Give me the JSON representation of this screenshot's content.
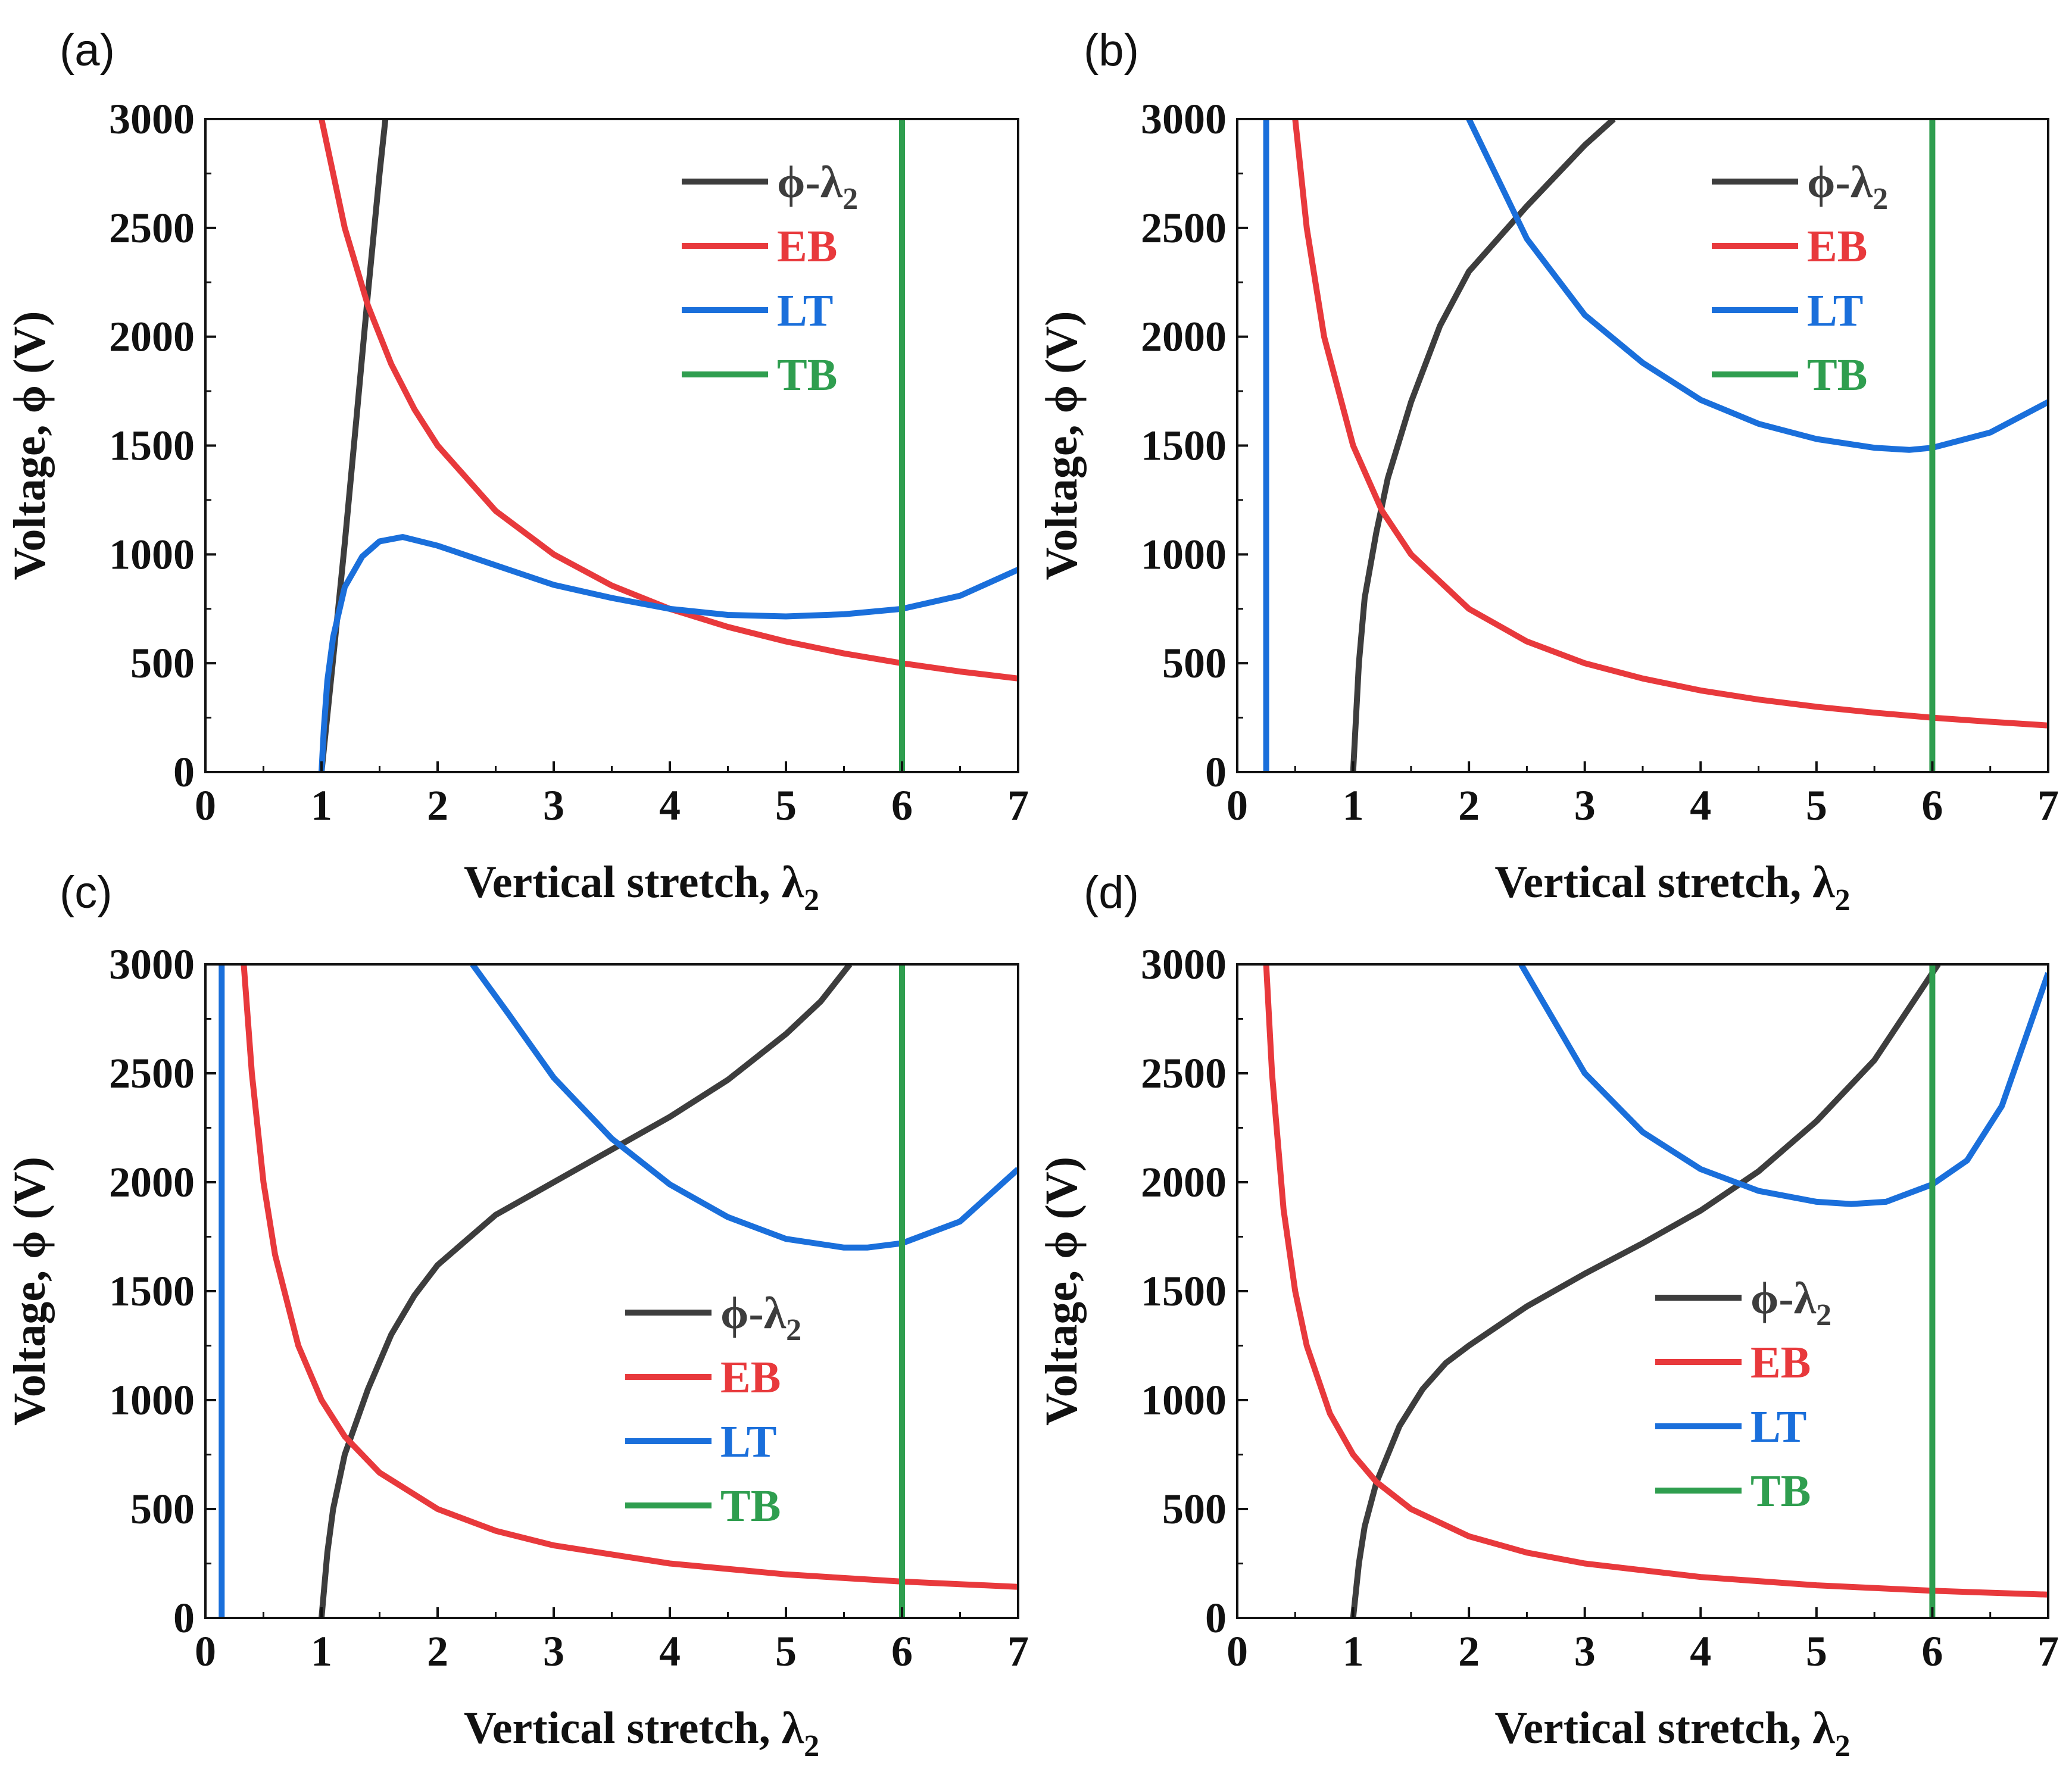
{
  "figure": {
    "panels": [
      {
        "label": "(a)"
      },
      {
        "label": "(b)"
      },
      {
        "label": "(c)"
      },
      {
        "label": "(d)"
      }
    ]
  },
  "chart_data": [
    {
      "type": "line",
      "panel": "(a)",
      "xlabel": "Vertical stretch, λ",
      "xlabel_subscript": "2",
      "ylabel": "Voltage, ϕ (V)",
      "xlim": [
        0,
        7
      ],
      "ylim": [
        0,
        3000
      ],
      "xticks": [
        0,
        1,
        2,
        3,
        4,
        5,
        6,
        7
      ],
      "yticks": [
        0,
        500,
        1000,
        1500,
        2000,
        2500,
        3000
      ],
      "legend_position": "top-right",
      "series": [
        {
          "name": "ϕ-λ",
          "sub": "2",
          "color": "#3d3d3d",
          "text_color": "#3d3d3d",
          "points": [
            [
              1.0,
              0
            ],
            [
              1.1,
              520
            ],
            [
              1.2,
              1050
            ],
            [
              1.3,
              1620
            ],
            [
              1.4,
              2200
            ],
            [
              1.5,
              2750
            ],
            [
              1.55,
              3000
            ]
          ]
        },
        {
          "name": "EB",
          "color": "#e8393c",
          "text_color": "#e8393c",
          "points": [
            [
              1.0,
              3000
            ],
            [
              1.2,
              2500
            ],
            [
              1.4,
              2143
            ],
            [
              1.6,
              1875
            ],
            [
              1.8,
              1667
            ],
            [
              2.0,
              1500
            ],
            [
              2.5,
              1200
            ],
            [
              3.0,
              1000
            ],
            [
              3.5,
              857
            ],
            [
              4.0,
              750
            ],
            [
              4.5,
              667
            ],
            [
              5.0,
              600
            ],
            [
              5.5,
              545
            ],
            [
              6.0,
              500
            ],
            [
              6.5,
              462
            ],
            [
              7.0,
              430
            ]
          ]
        },
        {
          "name": "LT",
          "color": "#1a6fdb",
          "text_color": "#1a6fdb",
          "points": [
            [
              1.0,
              0
            ],
            [
              1.02,
              200
            ],
            [
              1.05,
              420
            ],
            [
              1.1,
              620
            ],
            [
              1.2,
              850
            ],
            [
              1.35,
              990
            ],
            [
              1.5,
              1060
            ],
            [
              1.7,
              1080
            ],
            [
              2.0,
              1040
            ],
            [
              2.5,
              950
            ],
            [
              3.0,
              860
            ],
            [
              3.5,
              800
            ],
            [
              4.0,
              750
            ],
            [
              4.5,
              722
            ],
            [
              5.0,
              715
            ],
            [
              5.5,
              725
            ],
            [
              6.0,
              750
            ],
            [
              6.5,
              810
            ],
            [
              7.0,
              930
            ]
          ]
        },
        {
          "name": "TB",
          "color": "#2f9e4f",
          "text_color": "#2f9e4f",
          "points": [
            [
              6.0,
              0
            ],
            [
              6.0,
              3000
            ]
          ]
        }
      ]
    },
    {
      "type": "line",
      "panel": "(b)",
      "xlabel": "Vertical stretch, λ",
      "xlabel_subscript": "2",
      "ylabel": "Voltage, ϕ (V)",
      "xlim": [
        0,
        7
      ],
      "ylim": [
        0,
        3000
      ],
      "xticks": [
        0,
        1,
        2,
        3,
        4,
        5,
        6,
        7
      ],
      "yticks": [
        0,
        500,
        1000,
        1500,
        2000,
        2500,
        3000
      ],
      "legend_position": "top-right",
      "series": [
        {
          "name": "ϕ-λ",
          "sub": "2",
          "color": "#3d3d3d",
          "text_color": "#3d3d3d",
          "points": [
            [
              1.0,
              0
            ],
            [
              1.05,
              500
            ],
            [
              1.1,
              800
            ],
            [
              1.2,
              1100
            ],
            [
              1.3,
              1350
            ],
            [
              1.5,
              1700
            ],
            [
              1.75,
              2050
            ],
            [
              2.0,
              2300
            ],
            [
              2.5,
              2600
            ],
            [
              3.0,
              2880
            ],
            [
              3.25,
              3000
            ]
          ]
        },
        {
          "name": "EB",
          "color": "#e8393c",
          "text_color": "#e8393c",
          "points": [
            [
              0.5,
              3000
            ],
            [
              0.6,
              2500
            ],
            [
              0.75,
              2000
            ],
            [
              1.0,
              1500
            ],
            [
              1.25,
              1200
            ],
            [
              1.5,
              1000
            ],
            [
              2.0,
              750
            ],
            [
              2.5,
              600
            ],
            [
              3.0,
              500
            ],
            [
              3.5,
              430
            ],
            [
              4.0,
              375
            ],
            [
              4.5,
              333
            ],
            [
              5.0,
              300
            ],
            [
              5.5,
              273
            ],
            [
              6.0,
              250
            ],
            [
              6.5,
              231
            ],
            [
              7.0,
              214
            ]
          ]
        },
        {
          "name": "LT",
          "color": "#1a6fdb",
          "text_color": "#1a6fdb",
          "points": [
            [
              2.0,
              3000
            ],
            [
              2.5,
              2450
            ],
            [
              3.0,
              2100
            ],
            [
              3.5,
              1880
            ],
            [
              4.0,
              1710
            ],
            [
              4.5,
              1600
            ],
            [
              5.0,
              1530
            ],
            [
              5.5,
              1490
            ],
            [
              5.8,
              1480
            ],
            [
              6.0,
              1490
            ],
            [
              6.5,
              1560
            ],
            [
              7.0,
              1700
            ]
          ]
        },
        {
          "name": "LT (left branch)",
          "legend": false,
          "color": "#1a6fdb",
          "points": [
            [
              0.25,
              0
            ],
            [
              0.25,
              3000
            ]
          ]
        },
        {
          "name": "TB",
          "color": "#2f9e4f",
          "text_color": "#2f9e4f",
          "points": [
            [
              6.0,
              0
            ],
            [
              6.0,
              3000
            ]
          ]
        }
      ]
    },
    {
      "type": "line",
      "panel": "(c)",
      "xlabel": "Vertical stretch, λ",
      "xlabel_subscript": "2",
      "ylabel": "Voltage, ϕ (V)",
      "xlim": [
        0,
        7
      ],
      "ylim": [
        0,
        3000
      ],
      "xticks": [
        0,
        1,
        2,
        3,
        4,
        5,
        6,
        7
      ],
      "yticks": [
        0,
        500,
        1000,
        1500,
        2000,
        2500,
        3000
      ],
      "legend_position": "center-right",
      "series": [
        {
          "name": "ϕ-λ",
          "sub": "2",
          "color": "#3d3d3d",
          "text_color": "#3d3d3d",
          "points": [
            [
              1.0,
              0
            ],
            [
              1.05,
              300
            ],
            [
              1.1,
              500
            ],
            [
              1.2,
              750
            ],
            [
              1.4,
              1050
            ],
            [
              1.6,
              1300
            ],
            [
              1.8,
              1480
            ],
            [
              2.0,
              1620
            ],
            [
              2.5,
              1850
            ],
            [
              3.0,
              2000
            ],
            [
              3.5,
              2150
            ],
            [
              4.0,
              2300
            ],
            [
              4.5,
              2470
            ],
            [
              5.0,
              2680
            ],
            [
              5.3,
              2830
            ],
            [
              5.55,
              3000
            ]
          ]
        },
        {
          "name": "EB",
          "color": "#e8393c",
          "text_color": "#e8393c",
          "points": [
            [
              0.33,
              3000
            ],
            [
              0.4,
              2500
            ],
            [
              0.5,
              2000
            ],
            [
              0.6,
              1667
            ],
            [
              0.8,
              1250
            ],
            [
              1.0,
              1000
            ],
            [
              1.2,
              833
            ],
            [
              1.5,
              667
            ],
            [
              2.0,
              500
            ],
            [
              2.5,
              400
            ],
            [
              3.0,
              333
            ],
            [
              4.0,
              250
            ],
            [
              5.0,
              200
            ],
            [
              6.0,
              167
            ],
            [
              7.0,
              143
            ]
          ]
        },
        {
          "name": "LT",
          "color": "#1a6fdb",
          "text_color": "#1a6fdb",
          "points": [
            [
              2.3,
              3000
            ],
            [
              2.6,
              2780
            ],
            [
              3.0,
              2480
            ],
            [
              3.5,
              2200
            ],
            [
              4.0,
              1990
            ],
            [
              4.5,
              1840
            ],
            [
              5.0,
              1740
            ],
            [
              5.5,
              1700
            ],
            [
              5.7,
              1700
            ],
            [
              6.0,
              1720
            ],
            [
              6.5,
              1820
            ],
            [
              7.0,
              2060
            ]
          ]
        },
        {
          "name": "LT (left branch)",
          "legend": false,
          "color": "#1a6fdb",
          "points": [
            [
              0.14,
              0
            ],
            [
              0.14,
              3000
            ]
          ]
        },
        {
          "name": "TB",
          "color": "#2f9e4f",
          "text_color": "#2f9e4f",
          "points": [
            [
              6.0,
              0
            ],
            [
              6.0,
              3000
            ]
          ]
        }
      ]
    },
    {
      "type": "line",
      "panel": "(d)",
      "xlabel": "Vertical stretch, λ",
      "xlabel_subscript": "2",
      "ylabel": "Voltage, ϕ (V)",
      "xlim": [
        0,
        7
      ],
      "ylim": [
        0,
        3000
      ],
      "xticks": [
        0,
        1,
        2,
        3,
        4,
        5,
        6,
        7
      ],
      "yticks": [
        0,
        500,
        1000,
        1500,
        2000,
        2500,
        3000
      ],
      "legend_position": "center-right",
      "series": [
        {
          "name": "ϕ-λ",
          "sub": "2",
          "color": "#3d3d3d",
          "text_color": "#3d3d3d",
          "points": [
            [
              1.0,
              0
            ],
            [
              1.05,
              250
            ],
            [
              1.1,
              420
            ],
            [
              1.2,
              620
            ],
            [
              1.4,
              880
            ],
            [
              1.6,
              1050
            ],
            [
              1.8,
              1170
            ],
            [
              2.0,
              1250
            ],
            [
              2.5,
              1430
            ],
            [
              3.0,
              1580
            ],
            [
              3.5,
              1720
            ],
            [
              4.0,
              1870
            ],
            [
              4.5,
              2050
            ],
            [
              5.0,
              2280
            ],
            [
              5.5,
              2560
            ],
            [
              5.8,
              2800
            ],
            [
              6.05,
              3000
            ]
          ]
        },
        {
          "name": "EB",
          "color": "#e8393c",
          "text_color": "#e8393c",
          "points": [
            [
              0.25,
              3000
            ],
            [
              0.3,
              2500
            ],
            [
              0.4,
              1875
            ],
            [
              0.5,
              1500
            ],
            [
              0.6,
              1250
            ],
            [
              0.8,
              938
            ],
            [
              1.0,
              750
            ],
            [
              1.2,
              625
            ],
            [
              1.5,
              500
            ],
            [
              2.0,
              375
            ],
            [
              2.5,
              300
            ],
            [
              3.0,
              250
            ],
            [
              4.0,
              188
            ],
            [
              5.0,
              150
            ],
            [
              6.0,
              125
            ],
            [
              7.0,
              107
            ]
          ]
        },
        {
          "name": "LT",
          "color": "#1a6fdb",
          "text_color": "#1a6fdb",
          "points": [
            [
              2.45,
              3000
            ],
            [
              3.0,
              2500
            ],
            [
              3.5,
              2230
            ],
            [
              4.0,
              2060
            ],
            [
              4.5,
              1960
            ],
            [
              5.0,
              1910
            ],
            [
              5.3,
              1900
            ],
            [
              5.6,
              1910
            ],
            [
              6.0,
              1990
            ],
            [
              6.3,
              2100
            ],
            [
              6.6,
              2350
            ],
            [
              7.0,
              2960
            ]
          ]
        },
        {
          "name": "TB",
          "color": "#2f9e4f",
          "text_color": "#2f9e4f",
          "points": [
            [
              6.0,
              0
            ],
            [
              6.0,
              3000
            ]
          ]
        }
      ]
    }
  ]
}
